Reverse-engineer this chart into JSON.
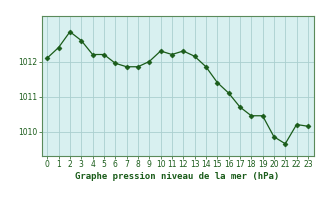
{
  "x": [
    0,
    1,
    2,
    3,
    4,
    5,
    6,
    7,
    8,
    9,
    10,
    11,
    12,
    13,
    14,
    15,
    16,
    17,
    18,
    19,
    20,
    21,
    22,
    23
  ],
  "y": [
    1012.1,
    1012.4,
    1012.85,
    1012.6,
    1012.2,
    1012.2,
    1011.95,
    1011.85,
    1011.85,
    1012.0,
    1012.3,
    1012.2,
    1012.3,
    1012.15,
    1011.85,
    1011.4,
    1011.1,
    1010.7,
    1010.45,
    1010.45,
    1009.85,
    1009.65,
    1010.2,
    1010.15
  ],
  "line_color": "#1a5c1a",
  "marker": "D",
  "marker_size": 2.5,
  "bg_color": "#d8f0f0",
  "plot_bg_color": "#d8f0f0",
  "outer_bg_color": "#ffffff",
  "grid_color": "#aacfcf",
  "title": "Graphe pression niveau de la mer (hPa)",
  "title_fontsize": 6.5,
  "tick_fontsize": 5.5,
  "yticks": [
    1010,
    1011,
    1012
  ],
  "ylim": [
    1009.3,
    1013.3
  ],
  "xlim": [
    -0.5,
    23.5
  ],
  "border_color": "#5a8a5a",
  "linewidth": 0.9
}
